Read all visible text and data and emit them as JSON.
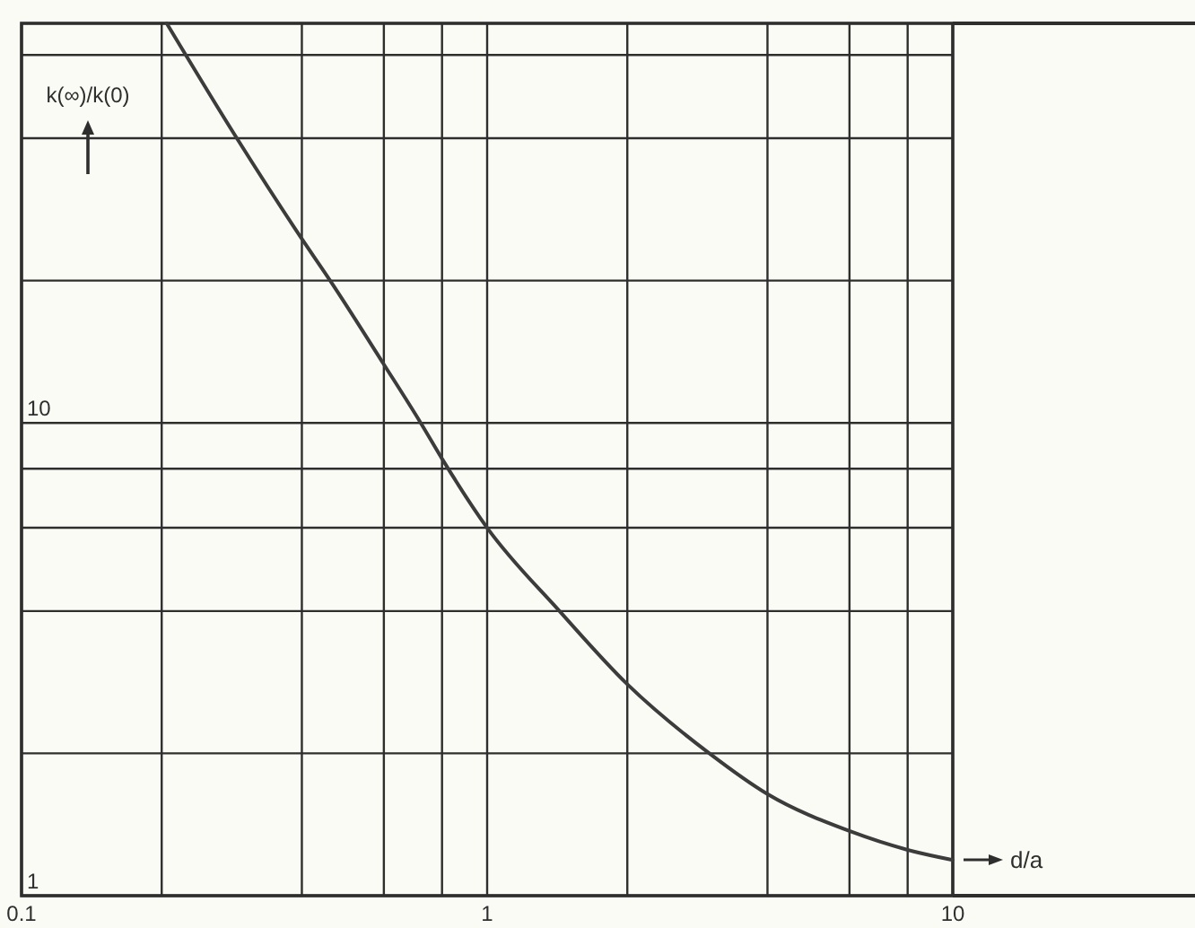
{
  "chart_data": {
    "type": "line",
    "xlabel": "d/a",
    "ylabel": "k(∞)/k(0)",
    "log": "xy",
    "xlim": [
      0.1,
      10
    ],
    "ylim": [
      1,
      70
    ],
    "xticks": [
      0.1,
      {
        "value": 0.2,
        "label": null
      },
      {
        "value": 0.4,
        "label": null
      },
      {
        "value": 0.6,
        "label": null
      },
      {
        "value": 0.8,
        "label": null
      },
      1,
      {
        "value": 2,
        "label": null
      },
      {
        "value": 4,
        "label": null
      },
      {
        "value": 6,
        "label": null
      },
      {
        "value": 8,
        "label": null
      },
      10
    ],
    "yticks": [
      1,
      {
        "value": 2,
        "label": null
      },
      {
        "value": 4,
        "label": null
      },
      {
        "value": 6,
        "label": null
      },
      {
        "value": 8,
        "label": null
      },
      10,
      {
        "value": 20,
        "label": null
      },
      {
        "value": 40,
        "label": null
      },
      {
        "value": 60,
        "label": null
      }
    ],
    "grid": true,
    "x": [
      0.205,
      0.29,
      0.4,
      0.46,
      0.6,
      0.72,
      0.8,
      1,
      1.43,
      2,
      3,
      4,
      6,
      8,
      10
    ],
    "series": [
      {
        "color": "#3c3c3c",
        "values": [
          70,
          40,
          24.5,
          20,
          13.3,
          10,
          8.4,
          6,
          4,
          2.8,
          2,
          1.64,
          1.37,
          1.25,
          1.19
        ]
      }
    ]
  }
}
